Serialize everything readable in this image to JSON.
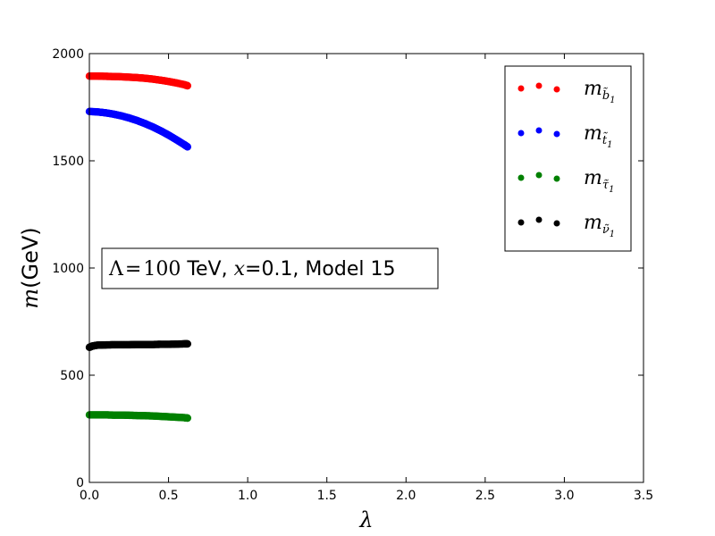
{
  "chart_data": {
    "type": "scatter",
    "xlabel": "λ",
    "ylabel_symbol": "m",
    "ylabel_unit": "(GeV)",
    "xlim": [
      0,
      3.5
    ],
    "ylim": [
      0,
      2000
    ],
    "x_ticks": [
      "0.0",
      "0.5",
      "1.0",
      "1.5",
      "2.0",
      "2.5",
      "3.0",
      "3.5"
    ],
    "y_ticks": [
      "0",
      "500",
      "1000",
      "1500",
      "2000"
    ],
    "grid": false,
    "legend_position": "top-right",
    "annotation": {
      "lambda_symbol": "Λ",
      "equals": "=",
      "value": "100",
      "unit_and_rest": " TeV, ",
      "x_symbol": "x",
      "x_rest": "=0.1, Model 15"
    },
    "series": [
      {
        "name": "m_b̃1",
        "legend_main": "m",
        "legend_sub": "b̃",
        "legend_subsub": "1",
        "color": "#ff0000",
        "x": [
          0.0,
          0.05,
          0.1,
          0.15,
          0.2,
          0.25,
          0.3,
          0.35,
          0.4,
          0.45,
          0.5,
          0.55,
          0.6,
          0.62
        ],
        "y": [
          1895,
          1895,
          1894,
          1893,
          1892,
          1890,
          1888,
          1885,
          1881,
          1876,
          1870,
          1863,
          1855,
          1850
        ]
      },
      {
        "name": "m_t̃1",
        "legend_main": "m",
        "legend_sub": "t̃",
        "legend_subsub": "1",
        "color": "#0000ff",
        "x": [
          0.0,
          0.05,
          0.1,
          0.15,
          0.2,
          0.25,
          0.3,
          0.35,
          0.4,
          0.45,
          0.5,
          0.55,
          0.6,
          0.62
        ],
        "y": [
          1730,
          1728,
          1724,
          1718,
          1710,
          1700,
          1688,
          1674,
          1658,
          1640,
          1620,
          1598,
          1575,
          1565
        ]
      },
      {
        "name": "m_τ̃1",
        "legend_main": "m",
        "legend_sub": "τ̃",
        "legend_subsub": "1",
        "color": "#008000",
        "x": [
          0.0,
          0.05,
          0.1,
          0.15,
          0.2,
          0.25,
          0.3,
          0.35,
          0.4,
          0.45,
          0.5,
          0.55,
          0.6,
          0.62
        ],
        "y": [
          315,
          315,
          315,
          314,
          314,
          313,
          312,
          311,
          310,
          308,
          306,
          304,
          302,
          300
        ]
      },
      {
        "name": "m_ν̃1",
        "legend_main": "m",
        "legend_sub": "ν̃",
        "legend_subsub": "1",
        "color": "#000000",
        "x": [
          0.0,
          0.02,
          0.05,
          0.1,
          0.15,
          0.2,
          0.25,
          0.3,
          0.35,
          0.4,
          0.45,
          0.5,
          0.55,
          0.6,
          0.62
        ],
        "y": [
          630,
          636,
          640,
          641,
          642,
          642,
          642,
          643,
          643,
          643,
          644,
          644,
          645,
          646,
          646
        ]
      }
    ]
  }
}
